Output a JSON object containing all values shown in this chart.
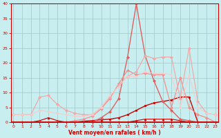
{
  "xlabel": "Vent moyen/en rafales ( km/h )",
  "xlim_min": -0.3,
  "xlim_max": 23.3,
  "ylim_min": 0,
  "ylim_max": 40,
  "yticks": [
    0,
    5,
    10,
    15,
    20,
    25,
    30,
    35,
    40
  ],
  "xticks": [
    0,
    1,
    2,
    3,
    4,
    5,
    6,
    7,
    8,
    9,
    10,
    11,
    12,
    13,
    14,
    15,
    16,
    17,
    18,
    19,
    20,
    21,
    22,
    23
  ],
  "background_color": "#c8eef0",
  "grid_color": "#a0c8c8",
  "axis_color": "#cc0000",
  "lines": [
    {
      "x": [
        0,
        1,
        2,
        3,
        4,
        5,
        6,
        7,
        8,
        9,
        10,
        11,
        12,
        13,
        14,
        15,
        16,
        17,
        18,
        19,
        20,
        21,
        22,
        23
      ],
      "y": [
        0,
        0,
        0,
        0,
        0,
        0,
        0,
        0,
        0,
        0,
        0,
        0,
        0,
        0,
        0,
        0,
        0,
        0,
        0,
        0,
        0,
        0,
        0,
        0
      ],
      "color": "#cc0000",
      "lw": 0.8,
      "marker": "+",
      "ms": 3.5
    },
    {
      "x": [
        0,
        1,
        2,
        3,
        4,
        5,
        6,
        7,
        8,
        9,
        10,
        11,
        12,
        13,
        14,
        15,
        16,
        17,
        18,
        19,
        20,
        21,
        22,
        23
      ],
      "y": [
        0,
        0,
        0,
        0,
        0,
        0,
        0,
        0,
        0.3,
        0.5,
        0.8,
        1.0,
        1.5,
        2.5,
        4.0,
        5.5,
        6.5,
        7.0,
        7.5,
        8.5,
        8.5,
        0,
        0,
        0
      ],
      "color": "#cc0000",
      "lw": 1.0,
      "marker": "s",
      "ms": 2.0
    },
    {
      "x": [
        0,
        1,
        2,
        3,
        4,
        5,
        6,
        7,
        8,
        9,
        10,
        11,
        12,
        13,
        14,
        15,
        16,
        17,
        18,
        19,
        20,
        21,
        22,
        23
      ],
      "y": [
        0,
        0,
        0,
        0.5,
        1.5,
        0.5,
        0,
        0,
        0,
        0,
        0,
        0,
        0,
        0,
        0.5,
        1.0,
        1.0,
        1.0,
        1.0,
        0.5,
        0,
        0,
        0,
        0
      ],
      "color": "#cc0000",
      "lw": 0.8,
      "marker": "^",
      "ms": 2.0
    },
    {
      "x": [
        0,
        1,
        2,
        3,
        4,
        5,
        6,
        7,
        8,
        9,
        10,
        11,
        12,
        13,
        14,
        15,
        16,
        17,
        18,
        19,
        20,
        21,
        22,
        23
      ],
      "y": [
        0,
        0,
        0,
        0,
        0,
        0,
        0,
        0,
        0,
        0,
        1.5,
        3.5,
        8.0,
        22.0,
        40.0,
        22.5,
        14.0,
        7.0,
        4.0,
        1.0,
        0.5,
        0,
        0,
        0
      ],
      "color": "#e06060",
      "lw": 1.0,
      "marker": "D",
      "ms": 2.0
    },
    {
      "x": [
        0,
        1,
        2,
        3,
        4,
        5,
        6,
        7,
        8,
        9,
        10,
        11,
        12,
        13,
        14,
        15,
        16,
        17,
        18,
        19,
        20,
        21,
        22,
        23
      ],
      "y": [
        0,
        0,
        0,
        0,
        0,
        0,
        0,
        0.5,
        1.0,
        2.0,
        4.5,
        8.0,
        13.0,
        17.5,
        16.0,
        16.5,
        16.0,
        16.0,
        5.0,
        15.0,
        5.0,
        2.5,
        1.5,
        0
      ],
      "color": "#f09090",
      "lw": 0.9,
      "marker": "D",
      "ms": 2.0
    },
    {
      "x": [
        0,
        1,
        2,
        3,
        4,
        5,
        6,
        7,
        8,
        9,
        10,
        11,
        12,
        13,
        14,
        15,
        16,
        17,
        18,
        19,
        20,
        21,
        22,
        23
      ],
      "y": [
        2.5,
        2.5,
        2.5,
        8.5,
        9.0,
        6.0,
        4.0,
        3.0,
        2.5,
        2.5,
        5.0,
        8.5,
        12.5,
        15.5,
        17.0,
        22.5,
        21.5,
        22.0,
        22.0,
        8.0,
        25.0,
        7.0,
        3.0,
        2.5
      ],
      "color": "#f0aaaa",
      "lw": 0.9,
      "marker": "D",
      "ms": 2.0
    },
    {
      "x": [
        0,
        1,
        2,
        3,
        4,
        5,
        6,
        7,
        8,
        9,
        10,
        11,
        12,
        13,
        14,
        15,
        16,
        17,
        18,
        19,
        20,
        21,
        22,
        23
      ],
      "y": [
        2.5,
        2.5,
        2.5,
        4.0,
        3.5,
        3.0,
        2.5,
        2.0,
        2.0,
        2.5,
        5.0,
        9.0,
        12.0,
        15.5,
        15.5,
        17.0,
        16.5,
        16.5,
        16.0,
        5.0,
        16.0,
        5.0,
        3.0,
        2.5
      ],
      "color": "#f8cccc",
      "lw": 0.8,
      "marker": "D",
      "ms": 1.5
    }
  ]
}
